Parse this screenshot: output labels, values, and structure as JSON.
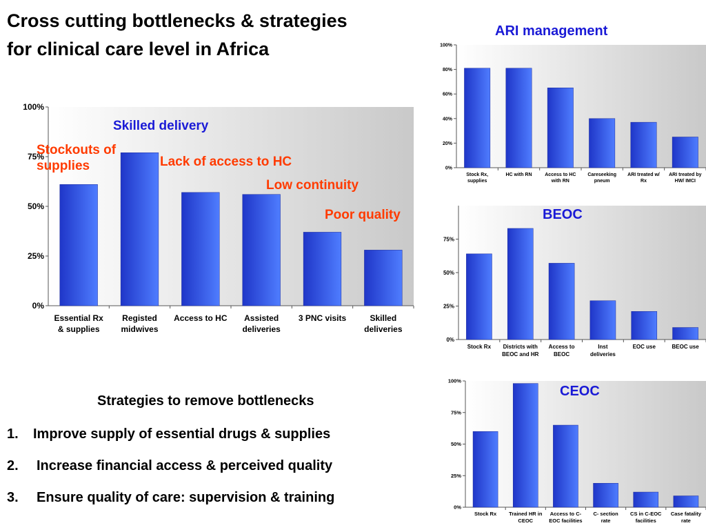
{
  "title": {
    "line1": "Cross cutting bottlenecks & strategies",
    "line2": "for clinical care level in Africa"
  },
  "colors": {
    "bar_dark": "#1f36c8",
    "bar_light": "#4f7dff",
    "blue_text": "#1a1ad6",
    "orange_text": "#ff3b00"
  },
  "annotations": {
    "skilled_delivery": "Skilled delivery",
    "stockouts_line1": "Stockouts of",
    "stockouts_line2": "supplies",
    "lack_access": "Lack of access to HC",
    "low_continuity": "Low continuity",
    "poor_quality": "Poor quality"
  },
  "strategies": {
    "heading": "Strategies to remove bottlenecks",
    "items": [
      {
        "num": "1.",
        "text": "Improve supply of essential drugs & supplies"
      },
      {
        "num": "2.",
        "text": "Increase financial access & perceived quality"
      },
      {
        "num": "3.",
        "text": "Ensure quality of care: supervision & training"
      }
    ]
  },
  "chart_data": [
    {
      "type": "bar",
      "title": "",
      "categories": [
        [
          "Essential Rx",
          "& supplies"
        ],
        [
          "Registed",
          "midwives"
        ],
        [
          "Access to HC"
        ],
        [
          "Assisted",
          "deliveries"
        ],
        [
          "3 PNC visits"
        ],
        [
          "Skilled",
          "deliveries"
        ]
      ],
      "values": [
        61,
        77,
        57,
        56,
        37,
        28
      ],
      "ylim": [
        0,
        100
      ],
      "yticks": [
        {
          "v": 0,
          "label": "0%"
        },
        {
          "v": 25,
          "label": "25%"
        },
        {
          "v": 50,
          "label": "50%"
        },
        {
          "v": 75,
          "label": "75%"
        },
        {
          "v": 100,
          "label": "100%"
        }
      ],
      "grid": false
    },
    {
      "type": "bar",
      "title": "ARI management",
      "categories": [
        [
          "Stock Rx,",
          "supplies"
        ],
        [
          "HC with RN"
        ],
        [
          "Access to HC",
          "with RN"
        ],
        [
          "Careseeking",
          "pneum"
        ],
        [
          "ARI treated w/",
          "Rx"
        ],
        [
          "ARI treated by",
          "HW/ IMCI"
        ]
      ],
      "values": [
        81,
        81,
        65,
        40,
        37,
        25
      ],
      "ylim": [
        0,
        100
      ],
      "yticks": [
        {
          "v": 0,
          "label": "0%"
        },
        {
          "v": 20,
          "label": "20%"
        },
        {
          "v": 40,
          "label": "40%"
        },
        {
          "v": 60,
          "label": "60%"
        },
        {
          "v": 80,
          "label": "80%"
        },
        {
          "v": 100,
          "label": "100%"
        }
      ],
      "grid": false
    },
    {
      "type": "bar",
      "title": "BEOC",
      "categories": [
        [
          "Stock Rx"
        ],
        [
          "Districts with",
          "BEOC and HR"
        ],
        [
          "Access to",
          "BEOC"
        ],
        [
          "Inst",
          "deliveries"
        ],
        [
          "EOC use"
        ],
        [
          "BEOC use"
        ]
      ],
      "values": [
        64,
        83,
        57,
        29,
        21,
        9
      ],
      "ylim": [
        0,
        100
      ],
      "yticks": [
        {
          "v": 0,
          "label": "0%"
        },
        {
          "v": 25,
          "label": "25%"
        },
        {
          "v": 50,
          "label": "50%"
        },
        {
          "v": 75,
          "label": "75%"
        }
      ],
      "grid": false
    },
    {
      "type": "bar",
      "title": "CEOC",
      "categories": [
        [
          "Stock Rx"
        ],
        [
          "Trained HR in",
          "CEOC"
        ],
        [
          "Access to C-",
          "EOC facilities"
        ],
        [
          "C- section",
          "rate"
        ],
        [
          "CS in C-EOC",
          "facilities"
        ],
        [
          "Case fatality",
          "rate"
        ]
      ],
      "values": [
        60,
        98,
        65,
        19,
        12,
        9
      ],
      "ylim": [
        0,
        100
      ],
      "yticks": [
        {
          "v": 0,
          "label": "0%"
        },
        {
          "v": 25,
          "label": "25%"
        },
        {
          "v": 50,
          "label": "50%"
        },
        {
          "v": 75,
          "label": "75%"
        },
        {
          "v": 100,
          "label": "100%"
        }
      ],
      "grid": false
    }
  ]
}
